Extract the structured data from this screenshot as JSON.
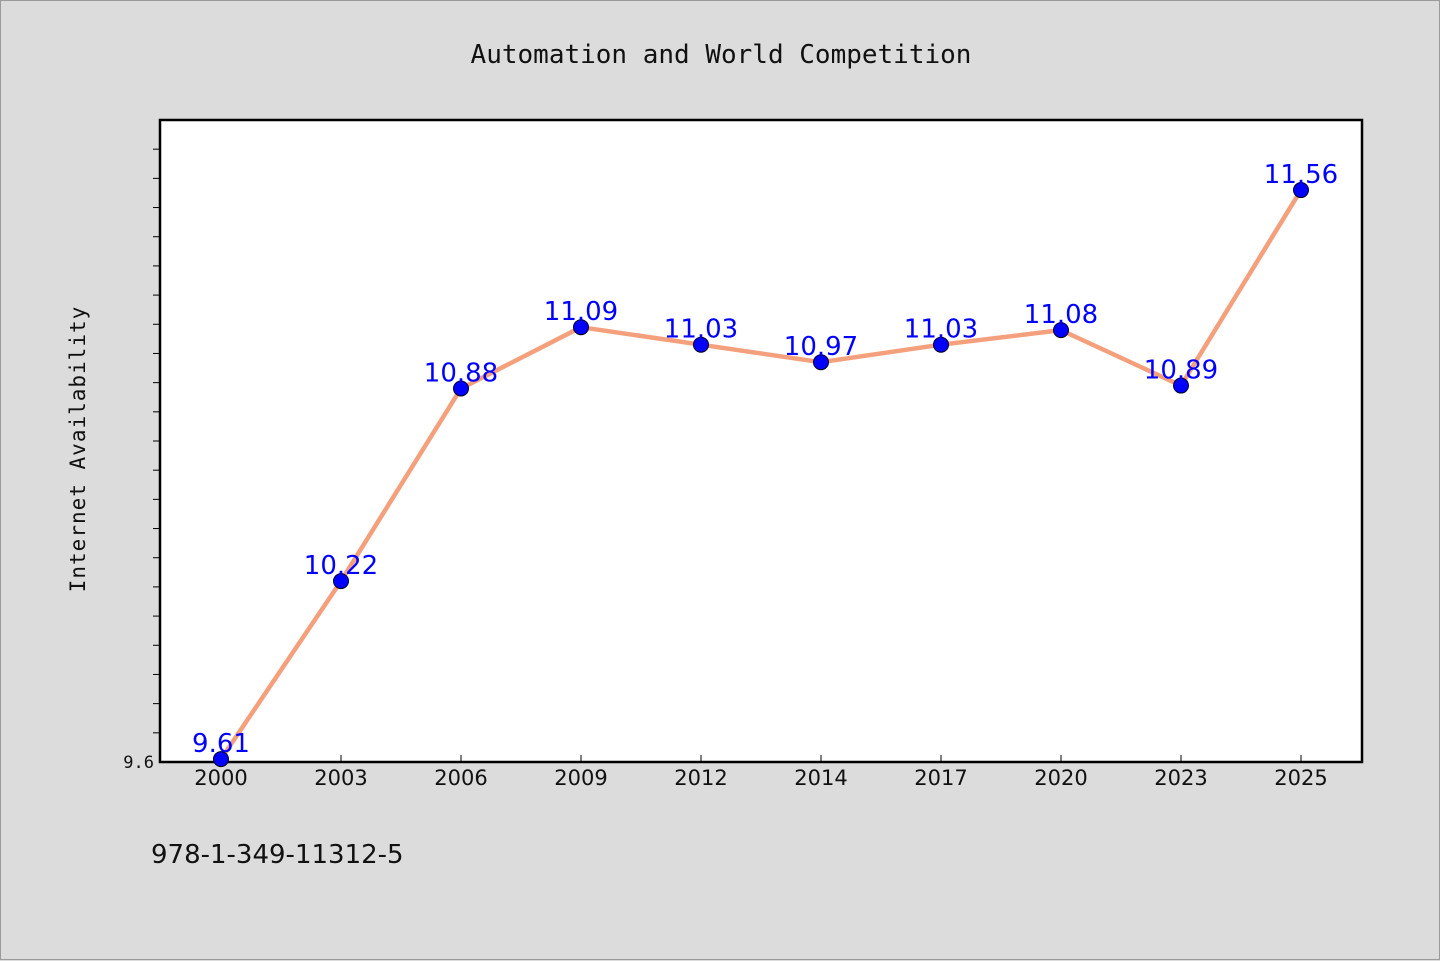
{
  "chart_data": {
    "type": "line",
    "title": "Automation and World Competition",
    "ylabel": "Internet Availability",
    "xlabel": "",
    "categories": [
      "2000",
      "2003",
      "2006",
      "2009",
      "2012",
      "2014",
      "2017",
      "2020",
      "2023",
      "2025"
    ],
    "series": [
      {
        "values": [
          9.61,
          10.22,
          10.88,
          11.09,
          11.03,
          10.97,
          11.03,
          11.08,
          10.89,
          11.56
        ],
        "data_labels": [
          "9.61",
          "10.22",
          "10.88",
          "11.09",
          "11.03",
          "10.97",
          "11.03",
          "11.08",
          "10.89",
          "11.56"
        ]
      }
    ],
    "ylim": [
      9.6,
      11.8
    ],
    "yticks": [
      {
        "value": 9.6,
        "label": "9.6"
      }
    ],
    "grid": false,
    "line_color": "#f4a07c",
    "marker_color": "#0000ff",
    "label_color": "#0000ff"
  },
  "footer": {
    "isbn": "978-1-349-11312-5"
  }
}
